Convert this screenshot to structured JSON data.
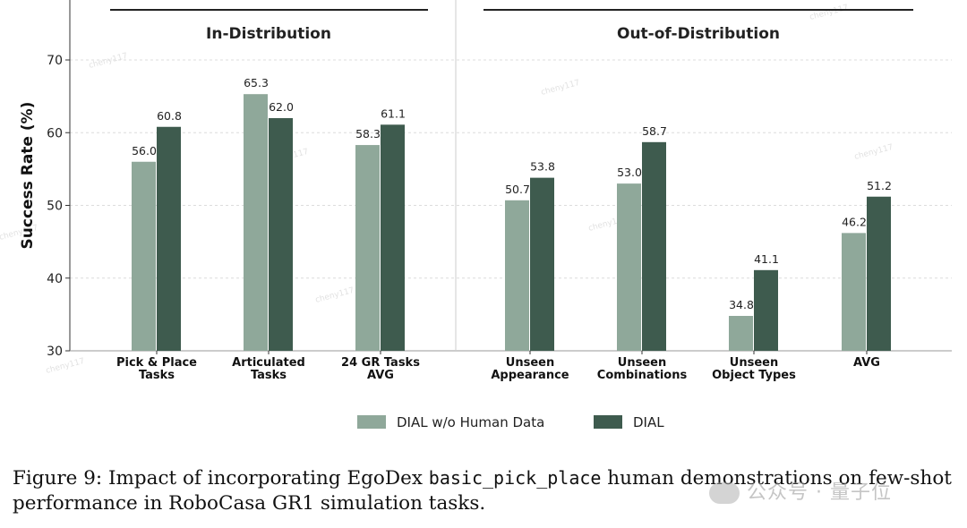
{
  "chart_data": {
    "type": "bar",
    "ylabel": "Success Rate (%)",
    "ylim": [
      30,
      70
    ],
    "yticks": [
      30,
      40,
      50,
      60,
      70
    ],
    "grid": true,
    "legend_position": "bottom-center",
    "colors": {
      "without_human": "#8fa89a",
      "dial": "#3e5b4e"
    },
    "groups": [
      {
        "title": "In-Distribution",
        "categories": [
          {
            "lines": [
              "Pick & Place",
              "Tasks"
            ]
          },
          {
            "lines": [
              "Articulated",
              "Tasks"
            ]
          },
          {
            "lines": [
              "24 GR Tasks",
              "AVG"
            ]
          }
        ]
      },
      {
        "title": "Out-of-Distribution",
        "categories": [
          {
            "lines": [
              "Unseen",
              "Appearance"
            ]
          },
          {
            "lines": [
              "Unseen",
              "Combinations"
            ]
          },
          {
            "lines": [
              "Unseen",
              "Object Types"
            ]
          },
          {
            "lines": [
              "AVG"
            ]
          }
        ]
      }
    ],
    "series": [
      {
        "name": "DIAL w/o Human Data",
        "values": [
          56.0,
          65.3,
          58.3,
          50.7,
          53.0,
          34.8,
          46.2
        ]
      },
      {
        "name": "DIAL",
        "values": [
          60.8,
          62.0,
          61.1,
          53.8,
          58.7,
          41.1,
          51.2
        ]
      }
    ]
  },
  "watermark_text": "公众号 · 量子位",
  "background_watermark": "cheny117",
  "caption": {
    "prefix": "Figure 9: Impact of incorporating EgoDex ",
    "code": "basic_pick_place",
    "suffix": " human demonstrations on few-shot performance in RoboCasa GR1 simulation tasks."
  }
}
